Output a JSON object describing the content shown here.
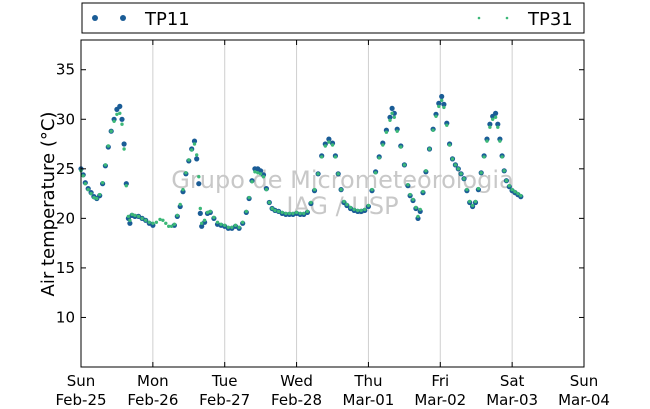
{
  "chart_data": {
    "type": "scatter",
    "ylabel": "Air temperature (°C)",
    "ylim": [
      5,
      38
    ],
    "yticks": [
      10,
      15,
      20,
      25,
      30,
      35
    ],
    "xlim": [
      0,
      7
    ],
    "xticks": [
      {
        "day": "Sun",
        "date": "Feb-25"
      },
      {
        "day": "Mon",
        "date": "Feb-26"
      },
      {
        "day": "Tue",
        "date": "Feb-27"
      },
      {
        "day": "Wed",
        "date": "Feb-28"
      },
      {
        "day": "Thu",
        "date": "Mar-01"
      },
      {
        "day": "Fri",
        "date": "Mar-02"
      },
      {
        "day": "Sat",
        "date": "Mar-03"
      },
      {
        "day": "Sun",
        "date": "Mar-04"
      }
    ],
    "vertical_grid": true,
    "legend_placement": "top, above plot",
    "watermark": [
      "Grupo de Micrometeorologia",
      "IAG / USP"
    ],
    "series": [
      {
        "name": "TP11",
        "color": "#1a5c96",
        "marker": "filled circle",
        "points": [
          [
            0.0,
            25.0
          ],
          [
            0.03,
            24.4
          ],
          [
            0.06,
            23.6
          ],
          [
            0.1,
            23.0
          ],
          [
            0.14,
            22.6
          ],
          [
            0.18,
            22.2
          ],
          [
            0.22,
            22.0
          ],
          [
            0.26,
            22.3
          ],
          [
            0.3,
            23.5
          ],
          [
            0.34,
            25.3
          ],
          [
            0.38,
            27.2
          ],
          [
            0.42,
            28.8
          ],
          [
            0.46,
            30.0
          ],
          [
            0.5,
            31.0
          ],
          [
            0.54,
            31.3
          ],
          [
            0.57,
            30.0
          ],
          [
            0.6,
            27.5
          ],
          [
            0.63,
            23.5
          ],
          [
            0.66,
            20.0
          ],
          [
            0.68,
            19.5
          ],
          [
            0.71,
            20.3
          ],
          [
            0.75,
            20.2
          ],
          [
            0.8,
            20.2
          ],
          [
            0.85,
            20.0
          ],
          [
            0.9,
            19.8
          ],
          [
            0.95,
            19.5
          ],
          [
            1.0,
            19.3
          ],
          [
            1.3,
            19.3
          ],
          [
            1.34,
            20.2
          ],
          [
            1.38,
            21.2
          ],
          [
            1.42,
            22.7
          ],
          [
            1.46,
            24.5
          ],
          [
            1.5,
            25.8
          ],
          [
            1.54,
            27.0
          ],
          [
            1.58,
            27.8
          ],
          [
            1.61,
            26.0
          ],
          [
            1.64,
            23.5
          ],
          [
            1.66,
            20.5
          ],
          [
            1.68,
            19.2
          ],
          [
            1.72,
            19.6
          ],
          [
            1.76,
            20.5
          ],
          [
            1.8,
            20.6
          ],
          [
            1.85,
            20.0
          ],
          [
            1.9,
            19.4
          ],
          [
            1.95,
            19.3
          ],
          [
            2.0,
            19.2
          ],
          [
            2.05,
            19.0
          ],
          [
            2.1,
            19.0
          ],
          [
            2.15,
            19.2
          ],
          [
            2.2,
            19.0
          ],
          [
            2.25,
            19.5
          ],
          [
            2.3,
            20.6
          ],
          [
            2.34,
            22.0
          ],
          [
            2.38,
            23.8
          ],
          [
            2.42,
            25.0
          ],
          [
            2.46,
            25.0
          ],
          [
            2.5,
            24.8
          ],
          [
            2.54,
            24.4
          ],
          [
            2.58,
            23.0
          ],
          [
            2.62,
            21.6
          ],
          [
            2.66,
            21.0
          ],
          [
            2.7,
            20.8
          ],
          [
            2.75,
            20.7
          ],
          [
            2.8,
            20.5
          ],
          [
            2.85,
            20.4
          ],
          [
            2.9,
            20.4
          ],
          [
            2.95,
            20.4
          ],
          [
            3.0,
            20.5
          ],
          [
            3.05,
            20.4
          ],
          [
            3.1,
            20.4
          ],
          [
            3.15,
            20.6
          ],
          [
            3.2,
            21.5
          ],
          [
            3.25,
            22.8
          ],
          [
            3.3,
            24.5
          ],
          [
            3.35,
            26.3
          ],
          [
            3.4,
            27.5
          ],
          [
            3.45,
            28.0
          ],
          [
            3.5,
            27.6
          ],
          [
            3.54,
            26.3
          ],
          [
            3.58,
            24.5
          ],
          [
            3.62,
            22.9
          ],
          [
            3.66,
            21.6
          ],
          [
            3.7,
            21.3
          ],
          [
            3.75,
            21.0
          ],
          [
            3.8,
            20.8
          ],
          [
            3.85,
            20.7
          ],
          [
            3.9,
            20.7
          ],
          [
            3.95,
            20.8
          ],
          [
            4.0,
            21.2
          ],
          [
            4.05,
            22.8
          ],
          [
            4.1,
            24.7
          ],
          [
            4.15,
            26.2
          ],
          [
            4.2,
            27.6
          ],
          [
            4.25,
            28.9
          ],
          [
            4.3,
            30.2
          ],
          [
            4.33,
            31.1
          ],
          [
            4.36,
            30.6
          ],
          [
            4.4,
            29.0
          ],
          [
            4.45,
            27.3
          ],
          [
            4.5,
            25.4
          ],
          [
            4.55,
            23.3
          ],
          [
            4.58,
            22.3
          ],
          [
            4.62,
            21.8
          ],
          [
            4.66,
            21.0
          ],
          [
            4.69,
            20.0
          ],
          [
            4.72,
            20.7
          ],
          [
            4.76,
            22.6
          ],
          [
            4.8,
            24.7
          ],
          [
            4.85,
            27.0
          ],
          [
            4.9,
            29.0
          ],
          [
            4.94,
            30.5
          ],
          [
            4.98,
            31.6
          ],
          [
            5.02,
            32.3
          ],
          [
            5.05,
            31.5
          ],
          [
            5.09,
            29.6
          ],
          [
            5.13,
            27.5
          ],
          [
            5.17,
            26.0
          ],
          [
            5.21,
            25.4
          ],
          [
            5.25,
            25.0
          ],
          [
            5.29,
            24.5
          ],
          [
            5.33,
            24.0
          ],
          [
            5.37,
            22.8
          ],
          [
            5.41,
            21.6
          ],
          [
            5.45,
            21.2
          ],
          [
            5.49,
            21.6
          ],
          [
            5.53,
            22.9
          ],
          [
            5.57,
            24.6
          ],
          [
            5.61,
            26.3
          ],
          [
            5.65,
            28.0
          ],
          [
            5.69,
            29.5
          ],
          [
            5.73,
            30.3
          ],
          [
            5.77,
            30.6
          ],
          [
            5.8,
            29.5
          ],
          [
            5.83,
            28.0
          ],
          [
            5.86,
            26.3
          ],
          [
            5.89,
            24.8
          ],
          [
            5.92,
            23.8
          ],
          [
            5.96,
            23.2
          ],
          [
            6.0,
            22.8
          ],
          [
            6.04,
            22.6
          ],
          [
            6.08,
            22.4
          ],
          [
            6.12,
            22.2
          ]
        ]
      },
      {
        "name": "TP31",
        "color": "#3cb878",
        "marker": "small dot",
        "points": [
          [
            0.0,
            24.8
          ],
          [
            0.03,
            24.3
          ],
          [
            0.06,
            23.5
          ],
          [
            0.1,
            22.9
          ],
          [
            0.14,
            22.5
          ],
          [
            0.18,
            22.1
          ],
          [
            0.22,
            22.0
          ],
          [
            0.26,
            22.4
          ],
          [
            0.3,
            23.6
          ],
          [
            0.34,
            25.4
          ],
          [
            0.38,
            27.3
          ],
          [
            0.42,
            28.8
          ],
          [
            0.46,
            29.8
          ],
          [
            0.5,
            30.5
          ],
          [
            0.54,
            30.6
          ],
          [
            0.57,
            29.5
          ],
          [
            0.6,
            27.0
          ],
          [
            0.63,
            23.3
          ],
          [
            0.66,
            20.2
          ],
          [
            0.68,
            19.8
          ],
          [
            0.71,
            20.4
          ],
          [
            0.75,
            20.3
          ],
          [
            0.8,
            20.2
          ],
          [
            0.85,
            20.0
          ],
          [
            0.9,
            19.8
          ],
          [
            0.95,
            19.6
          ],
          [
            1.0,
            19.5
          ],
          [
            1.05,
            19.6
          ],
          [
            1.1,
            19.9
          ],
          [
            1.14,
            19.8
          ],
          [
            1.18,
            19.5
          ],
          [
            1.22,
            19.2
          ],
          [
            1.26,
            19.2
          ],
          [
            1.3,
            19.4
          ],
          [
            1.34,
            20.3
          ],
          [
            1.38,
            21.4
          ],
          [
            1.42,
            22.9
          ],
          [
            1.46,
            24.6
          ],
          [
            1.5,
            25.9
          ],
          [
            1.54,
            26.9
          ],
          [
            1.58,
            27.5
          ],
          [
            1.61,
            26.4
          ],
          [
            1.64,
            24.2
          ],
          [
            1.66,
            21.0
          ],
          [
            1.68,
            19.5
          ],
          [
            1.72,
            19.8
          ],
          [
            1.76,
            20.6
          ],
          [
            1.8,
            20.7
          ],
          [
            1.85,
            20.1
          ],
          [
            1.9,
            19.6
          ],
          [
            1.95,
            19.4
          ],
          [
            2.0,
            19.3
          ],
          [
            2.05,
            19.1
          ],
          [
            2.1,
            19.1
          ],
          [
            2.15,
            19.3
          ],
          [
            2.2,
            19.1
          ],
          [
            2.25,
            19.6
          ],
          [
            2.3,
            20.7
          ],
          [
            2.34,
            22.1
          ],
          [
            2.38,
            23.7
          ],
          [
            2.42,
            24.7
          ],
          [
            2.46,
            24.6
          ],
          [
            2.5,
            24.5
          ],
          [
            2.54,
            24.2
          ],
          [
            2.58,
            22.9
          ],
          [
            2.62,
            21.6
          ],
          [
            2.66,
            21.0
          ],
          [
            2.7,
            20.8
          ],
          [
            2.75,
            20.7
          ],
          [
            2.8,
            20.6
          ],
          [
            2.85,
            20.5
          ],
          [
            2.9,
            20.5
          ],
          [
            2.95,
            20.5
          ],
          [
            3.0,
            20.6
          ],
          [
            3.05,
            20.5
          ],
          [
            3.1,
            20.5
          ],
          [
            3.15,
            20.7
          ],
          [
            3.2,
            21.6
          ],
          [
            3.25,
            22.9
          ],
          [
            3.3,
            24.5
          ],
          [
            3.35,
            26.2
          ],
          [
            3.4,
            27.3
          ],
          [
            3.45,
            27.7
          ],
          [
            3.5,
            27.4
          ],
          [
            3.54,
            26.2
          ],
          [
            3.58,
            24.5
          ],
          [
            3.62,
            22.9
          ],
          [
            3.66,
            21.7
          ],
          [
            3.7,
            21.4
          ],
          [
            3.75,
            21.1
          ],
          [
            3.8,
            20.9
          ],
          [
            3.85,
            20.8
          ],
          [
            3.9,
            20.8
          ],
          [
            3.95,
            20.9
          ],
          [
            4.0,
            21.3
          ],
          [
            4.05,
            22.9
          ],
          [
            4.1,
            24.6
          ],
          [
            4.15,
            26.1
          ],
          [
            4.2,
            27.4
          ],
          [
            4.25,
            28.7
          ],
          [
            4.3,
            29.9
          ],
          [
            4.33,
            30.6
          ],
          [
            4.36,
            30.2
          ],
          [
            4.4,
            28.8
          ],
          [
            4.45,
            27.2
          ],
          [
            4.5,
            25.4
          ],
          [
            4.55,
            23.4
          ],
          [
            4.58,
            22.4
          ],
          [
            4.62,
            21.9
          ],
          [
            4.66,
            21.1
          ],
          [
            4.69,
            20.2
          ],
          [
            4.72,
            20.9
          ],
          [
            4.76,
            22.7
          ],
          [
            4.8,
            24.8
          ],
          [
            4.85,
            27.0
          ],
          [
            4.9,
            28.9
          ],
          [
            4.94,
            30.3
          ],
          [
            4.98,
            31.3
          ],
          [
            5.02,
            31.9
          ],
          [
            5.05,
            31.2
          ],
          [
            5.09,
            29.4
          ],
          [
            5.13,
            27.4
          ],
          [
            5.17,
            26.0
          ],
          [
            5.21,
            25.4
          ],
          [
            5.25,
            25.0
          ],
          [
            5.29,
            24.5
          ],
          [
            5.33,
            24.0
          ],
          [
            5.37,
            22.9
          ],
          [
            5.41,
            21.7
          ],
          [
            5.45,
            21.3
          ],
          [
            5.49,
            21.7
          ],
          [
            5.53,
            23.0
          ],
          [
            5.57,
            24.6
          ],
          [
            5.61,
            26.2
          ],
          [
            5.65,
            27.8
          ],
          [
            5.69,
            29.2
          ],
          [
            5.73,
            30.0
          ],
          [
            5.77,
            30.2
          ],
          [
            5.8,
            29.2
          ],
          [
            5.83,
            27.8
          ],
          [
            5.86,
            26.2
          ],
          [
            5.89,
            24.8
          ],
          [
            5.92,
            23.8
          ],
          [
            5.96,
            23.3
          ],
          [
            6.0,
            22.9
          ],
          [
            6.04,
            22.7
          ],
          [
            6.08,
            22.5
          ],
          [
            6.12,
            22.3
          ]
        ]
      }
    ]
  }
}
